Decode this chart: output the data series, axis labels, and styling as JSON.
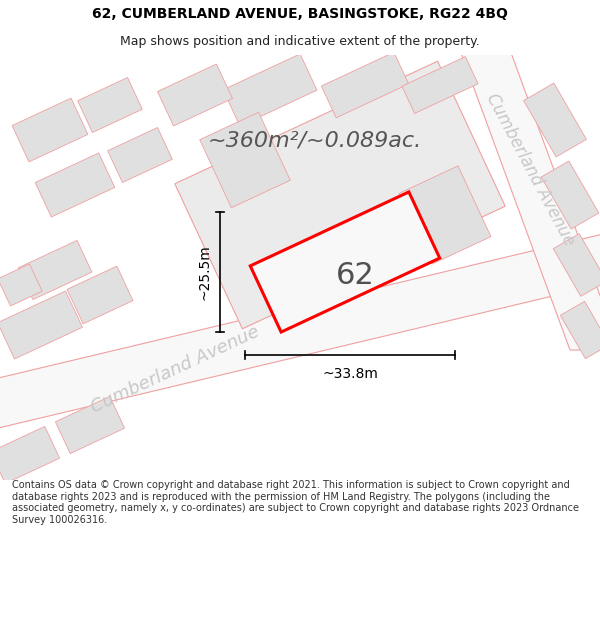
{
  "title_line1": "62, CUMBERLAND AVENUE, BASINGSTOKE, RG22 4BQ",
  "title_line2": "Map shows position and indicative extent of the property.",
  "area_text": "~360m²/~0.089ac.",
  "house_number": "62",
  "dim_width": "~33.8m",
  "dim_height": "~25.5m",
  "road_label_bottom": "Cumberland Avenue",
  "road_label_right": "Cumberland Avenue",
  "footer_text": "Contains OS data © Crown copyright and database right 2021. This information is subject to Crown copyright and database rights 2023 and is reproduced with the permission of HM Land Registry. The polygons (including the associated geometry, namely x, y co-ordinates) are subject to Crown copyright and database rights 2023 Ordnance Survey 100026316.",
  "bg_color": "#ffffff",
  "map_bg": "#ffffff",
  "building_fill": "#e0e0e0",
  "road_line_color": "#f0a0a0",
  "highlight_color": "#ff0000",
  "highlight_fill": "#f5f5f5",
  "dim_line_color": "#000000",
  "text_color": "#333333",
  "road_text_color": "#c8c8c8",
  "title_fontsize": 10,
  "subtitle_fontsize": 9,
  "area_fontsize": 16,
  "house_fontsize": 22,
  "dim_fontsize": 10,
  "road_fontsize": 13,
  "footer_fontsize": 7
}
